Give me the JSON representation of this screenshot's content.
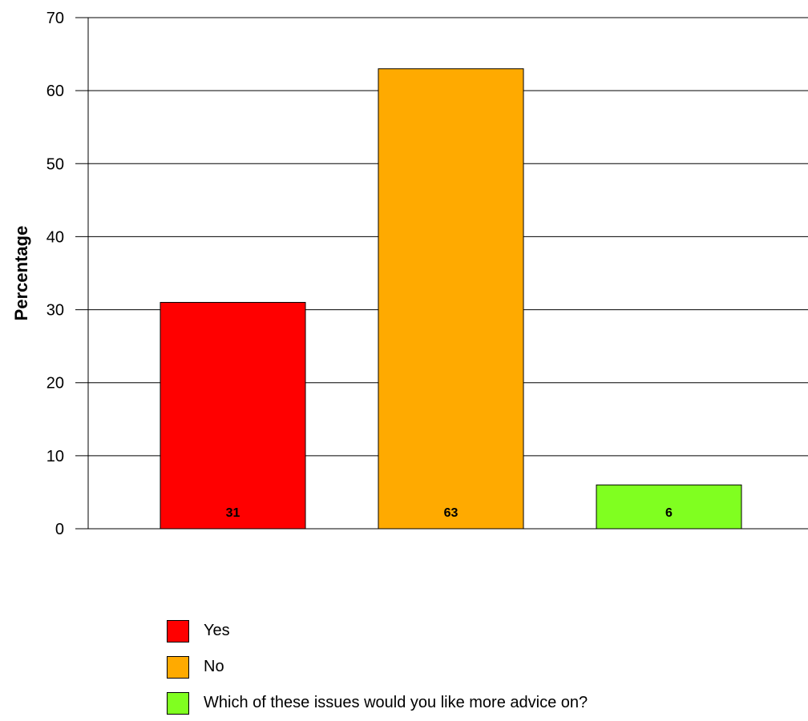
{
  "chart_data": {
    "type": "bar",
    "categories": [
      "Yes",
      "No",
      "Which of these issues would you like more advice on?"
    ],
    "values": [
      31,
      63,
      6
    ],
    "data_labels": [
      "31",
      "63",
      "6"
    ],
    "colors": [
      "#ff0000",
      "#ffaa00",
      "#80ff20"
    ],
    "ylabel": "Percentage",
    "xlabel": "",
    "ylim": [
      0,
      70
    ],
    "yticks": [
      "0",
      "10",
      "20",
      "30",
      "40",
      "50",
      "60",
      "70"
    ],
    "grid": true,
    "legend_position": "bottom"
  }
}
